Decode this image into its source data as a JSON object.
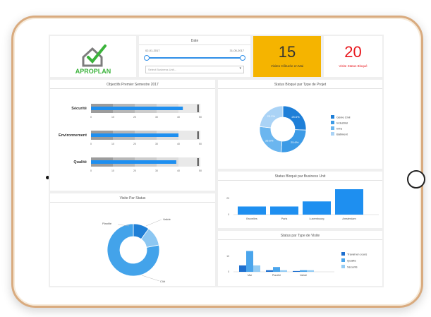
{
  "brand": {
    "name": "APROPLAN"
  },
  "date_filter": {
    "title": "Date",
    "start": "02-01-2017",
    "end": "31-05-2017",
    "business_unit_placeholder": "Select Business Unit..."
  },
  "kpi_visits": {
    "value": "15",
    "caption": "Visites Clôturée en Mai",
    "bg": "#f5b400",
    "text_color": "#333333"
  },
  "kpi_risk": {
    "value": "20",
    "caption": "Visite Status Bloqué",
    "text_color": "#e8151b"
  },
  "objectives": {
    "title": "Objectifs Premier Semestre 2017",
    "axis_ticks": [
      "0",
      "10",
      "20",
      "30",
      "40",
      "50"
    ],
    "rows": [
      {
        "label": "Sécurité",
        "value": 42,
        "target": 50,
        "max": 50
      },
      {
        "label": "Environnement",
        "value": 40,
        "target": 50,
        "max": 50
      },
      {
        "label": "Qualité",
        "value": 39,
        "target": 50,
        "max": 50
      }
    ]
  },
  "status_type": {
    "title": "Status Bloqué par Type de Projet",
    "chart_data": {
      "type": "pie",
      "slices": [
        {
          "name": "Génie Civil",
          "value": 25.6,
          "label": "25.6%",
          "color": "#1e7fd8"
        },
        {
          "name": "Industriel",
          "value": 25.6,
          "label": "25.6%",
          "color": "#3d9be6"
        },
        {
          "name": "Infra",
          "value": 25.6,
          "label": "25.6%",
          "color": "#6bb6ef"
        },
        {
          "name": "Bâtiment",
          "value": 23.2,
          "label": "23.2%",
          "color": "#aad3f6"
        }
      ],
      "legend": "right"
    }
  },
  "business_unit": {
    "title": "Status Bloqué par Business Unit",
    "chart_data": {
      "type": "bar",
      "categories": [
        "Bruxelles",
        "Paris",
        "Luxembourg",
        "Amsterdam"
      ],
      "values": [
        8,
        8,
        13,
        25
      ],
      "ylim": [
        0,
        25
      ],
      "y_ticks": [
        "20",
        "0"
      ]
    },
    "bar_color": "#1e8ff0"
  },
  "visits_status": {
    "title": "Visite Par Status",
    "labels": [
      "Planifié",
      "Validé",
      "Clôt"
    ],
    "chart_data": {
      "type": "pie",
      "slices": [
        {
          "name": "Validé",
          "value": 10,
          "color": "#1f7fd6"
        },
        {
          "name": "Planifié",
          "value": 12,
          "color": "#8cc7f2"
        },
        {
          "name": "Clôt",
          "value": 78,
          "color": "#43a3ea"
        }
      ]
    }
  },
  "visit_type": {
    "title": "Status par Type de Visite",
    "chart_data": {
      "type": "bar",
      "categories": [
        "Mai",
        "Planifié",
        "Validé"
      ],
      "series": [
        {
          "name": "Travail en cours",
          "color": "#1e6fcf",
          "values": [
            4,
            1,
            0.5
          ]
        },
        {
          "name": "Qualité",
          "color": "#4aa5ec",
          "values": [
            13,
            3,
            1
          ]
        },
        {
          "name": "Sécurité",
          "color": "#94ccf4",
          "values": [
            4,
            1,
            1
          ]
        }
      ],
      "ylim": [
        0,
        15
      ],
      "y_ticks": [
        "10",
        "0"
      ],
      "legend": "right"
    }
  }
}
